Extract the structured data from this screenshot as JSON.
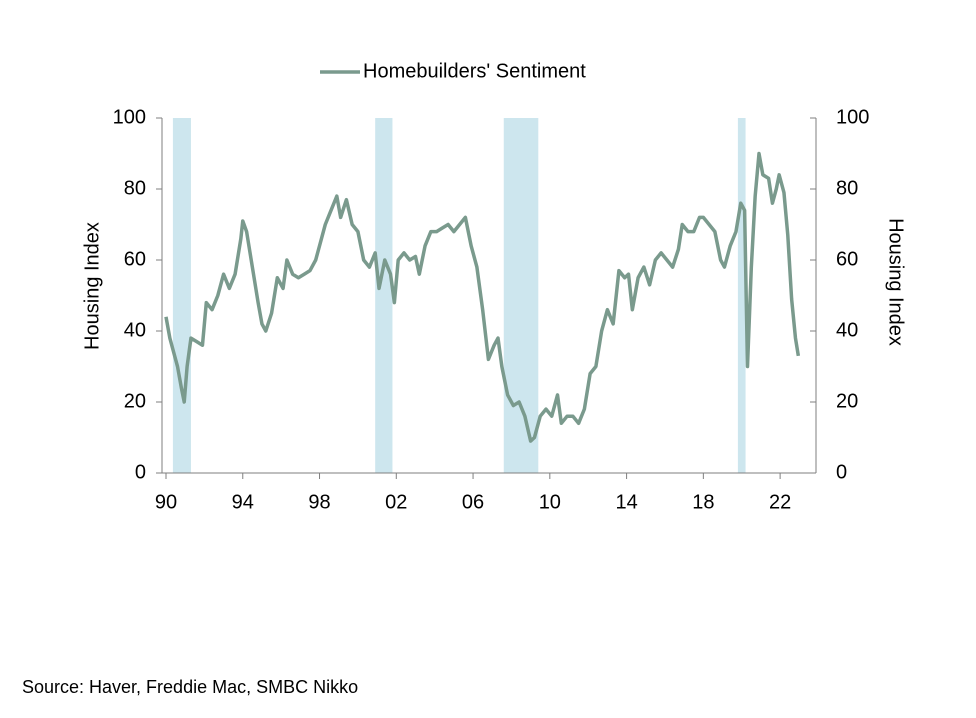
{
  "chart_data": {
    "type": "line",
    "series": [
      {
        "name": "Homebuilders' Sentiment",
        "color": "#7a9a8d",
        "x": [
          1990.0,
          1990.2,
          1990.4,
          1990.6,
          1990.8,
          1990.95,
          1991.1,
          1991.3,
          1991.6,
          1991.9,
          1992.1,
          1992.4,
          1992.7,
          1993.0,
          1993.3,
          1993.6,
          1993.9,
          1994.0,
          1994.2,
          1994.5,
          1994.8,
          1995.0,
          1995.2,
          1995.5,
          1995.8,
          1996.1,
          1996.3,
          1996.6,
          1996.9,
          1997.2,
          1997.5,
          1997.8,
          1998.0,
          1998.3,
          1998.6,
          1998.9,
          1999.1,
          1999.4,
          1999.7,
          2000.0,
          2000.3,
          2000.6,
          2000.9,
          2001.1,
          2001.4,
          2001.7,
          2001.9,
          2002.1,
          2002.4,
          2002.7,
          2003.0,
          2003.2,
          2003.5,
          2003.8,
          2004.1,
          2004.4,
          2004.7,
          2005.0,
          2005.3,
          2005.6,
          2005.9,
          2006.2,
          2006.5,
          2006.8,
          2007.1,
          2007.3,
          2007.5,
          2007.8,
          2008.1,
          2008.4,
          2008.7,
          2009.0,
          2009.2,
          2009.5,
          2009.8,
          2010.1,
          2010.4,
          2010.6,
          2010.9,
          2011.2,
          2011.5,
          2011.8,
          2012.1,
          2012.4,
          2012.7,
          2013.0,
          2013.3,
          2013.6,
          2013.9,
          2014.1,
          2014.3,
          2014.6,
          2014.9,
          2015.2,
          2015.5,
          2015.8,
          2016.1,
          2016.4,
          2016.7,
          2016.9,
          2017.2,
          2017.5,
          2017.8,
          2018.0,
          2018.3,
          2018.6,
          2018.9,
          2019.1,
          2019.4,
          2019.7,
          2019.95,
          2020.15,
          2020.3,
          2020.5,
          2020.7,
          2020.9,
          2021.1,
          2021.4,
          2021.6,
          2021.8,
          2021.95,
          2022.2,
          2022.4,
          2022.6,
          2022.8,
          2022.95
        ],
        "values": [
          44,
          38,
          34,
          30,
          24,
          20,
          30,
          38,
          37,
          36,
          48,
          46,
          50,
          56,
          52,
          56,
          66,
          71,
          68,
          58,
          48,
          42,
          40,
          45,
          55,
          52,
          60,
          56,
          55,
          56,
          57,
          60,
          64,
          70,
          74,
          78,
          72,
          77,
          70,
          68,
          60,
          58,
          62,
          52,
          60,
          56,
          48,
          60,
          62,
          60,
          61,
          56,
          64,
          68,
          68,
          69,
          70,
          68,
          70,
          72,
          64,
          58,
          46,
          32,
          36,
          38,
          30,
          22,
          19,
          20,
          16,
          9,
          10,
          16,
          18,
          16,
          22,
          14,
          16,
          16,
          14,
          18,
          28,
          30,
          40,
          46,
          42,
          57,
          55,
          56,
          46,
          55,
          58,
          53,
          60,
          62,
          60,
          58,
          63,
          70,
          68,
          68,
          72,
          72,
          70,
          68,
          60,
          58,
          64,
          68,
          76,
          74,
          30,
          58,
          78,
          90,
          84,
          83,
          76,
          80,
          84,
          79,
          67,
          49,
          38,
          33
        ]
      }
    ],
    "shaded": [
      [
        1990.36,
        1991.3
      ],
      [
        2000.9,
        2001.8
      ],
      [
        2007.6,
        2009.4
      ],
      [
        2019.8,
        2020.2
      ]
    ],
    "xlim": [
      1990,
      2023.87
    ],
    "xticks": [
      {
        "value": 1990,
        "label": "90"
      },
      {
        "value": 1994,
        "label": "94"
      },
      {
        "value": 1998,
        "label": "98"
      },
      {
        "value": 2002,
        "label": "02"
      },
      {
        "value": 2006,
        "label": "06"
      },
      {
        "value": 2010,
        "label": "10"
      },
      {
        "value": 2014,
        "label": "14"
      },
      {
        "value": 2018,
        "label": "18"
      },
      {
        "value": 2022,
        "label": "22"
      }
    ],
    "ylim": [
      0,
      100
    ],
    "yticks": [
      0,
      20,
      40,
      60,
      80,
      100
    ],
    "y2lim": [
      0,
      100
    ],
    "y2ticks": [
      0,
      20,
      40,
      60,
      80,
      100
    ],
    "ylabel": "Housing Index",
    "y2label": "Housing Index",
    "legend": "top",
    "source": "Source: Haver, Freddie Mac, SMBC Nikko"
  }
}
